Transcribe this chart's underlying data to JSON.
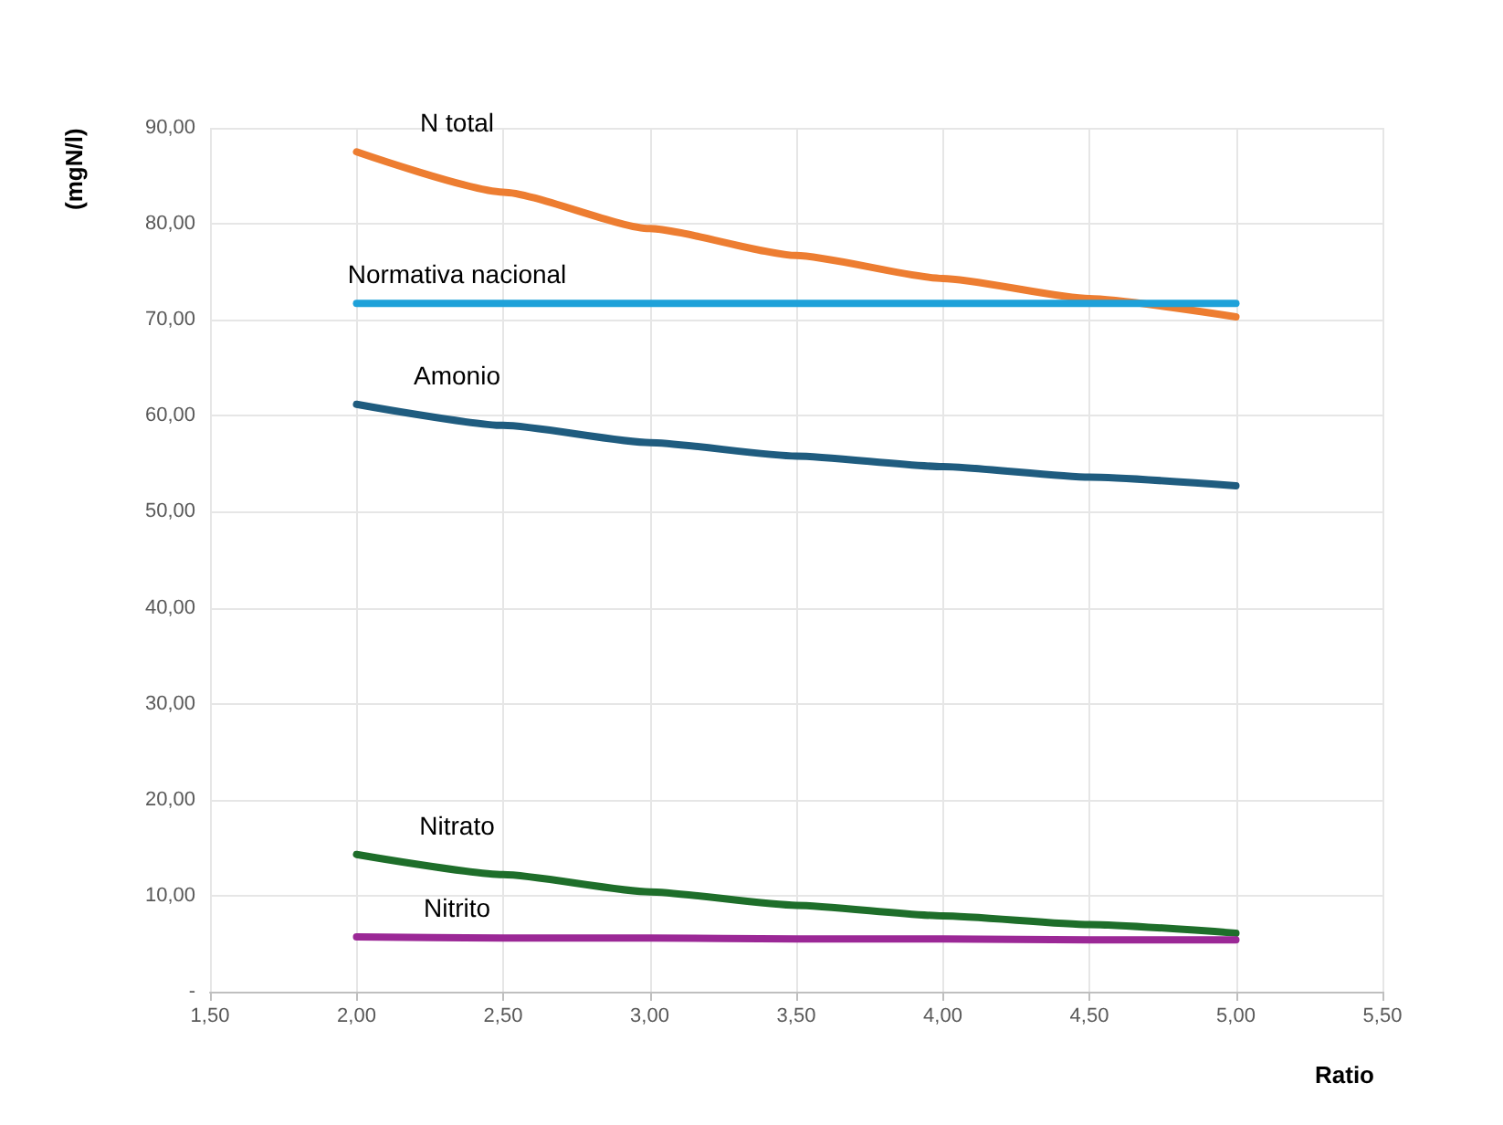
{
  "chart_data": {
    "type": "line",
    "xlabel": "Ratio",
    "ylabel": "(mgN/l)",
    "x": [
      2,
      2.5,
      3,
      3.5,
      4,
      4.5,
      5
    ],
    "series": [
      {
        "name": "N total",
        "color": "#ed7d31",
        "values": [
          87.5,
          83.3,
          79.5,
          76.7,
          74.3,
          72.2,
          70.3
        ]
      },
      {
        "name": "Normativa nacional",
        "color": "#1ea1d9",
        "values": [
          71.7,
          71.7,
          71.7,
          71.7,
          71.7,
          71.7,
          71.7
        ]
      },
      {
        "name": "Amonio",
        "color": "#1f5c7f",
        "values": [
          61.2,
          59.0,
          57.2,
          55.8,
          54.7,
          53.6,
          52.7
        ]
      },
      {
        "name": "Nitrato",
        "color": "#1e6e2a",
        "values": [
          14.3,
          12.2,
          10.4,
          9.0,
          7.9,
          7.0,
          6.1
        ]
      },
      {
        "name": "Nitrito",
        "color": "#9b2896",
        "values": [
          5.7,
          5.6,
          5.6,
          5.5,
          5.5,
          5.4,
          5.4
        ]
      }
    ],
    "xlim": [
      1.5,
      5.5
    ],
    "xticks": [
      {
        "value": 1.5,
        "label": "1,50"
      },
      {
        "value": 2,
        "label": "2,00"
      },
      {
        "value": 2.5,
        "label": "2,50"
      },
      {
        "value": 3,
        "label": "3,00"
      },
      {
        "value": 3.5,
        "label": "3,50"
      },
      {
        "value": 4,
        "label": "4,00"
      },
      {
        "value": 4.5,
        "label": "4,50"
      },
      {
        "value": 5,
        "label": "5,00"
      },
      {
        "value": 5.5,
        "label": "5,50"
      }
    ],
    "ylim": [
      0,
      90
    ],
    "yticks": [
      {
        "value": 0,
        "label": "-"
      },
      {
        "value": 10,
        "label": "10,00"
      },
      {
        "value": 20,
        "label": "20,00"
      },
      {
        "value": 30,
        "label": "30,00"
      },
      {
        "value": 40,
        "label": "40,00"
      },
      {
        "value": 50,
        "label": "50,00"
      },
      {
        "value": 60,
        "label": "60,00"
      },
      {
        "value": 70,
        "label": "70,00"
      },
      {
        "value": 80,
        "label": "80,00"
      },
      {
        "value": 90,
        "label": "90,00"
      }
    ],
    "grid": true,
    "legend": false,
    "marker": "none",
    "line_style": "solid"
  }
}
